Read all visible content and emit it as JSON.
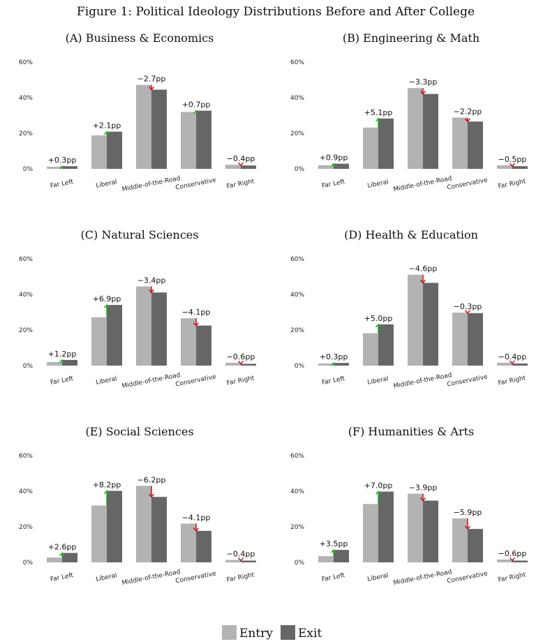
{
  "figure_title": "Figure 1: Political Ideology Distributions Before and After College",
  "legend": {
    "entry_label": "Entry",
    "exit_label": "Exit",
    "entry_color": "#b3b3b3",
    "exit_color": "#666666"
  },
  "colors": {
    "up_arrow": "#22aa22",
    "down_arrow": "#cc1111"
  },
  "chart_data": [
    {
      "type": "bar",
      "title": "(A) Business & Economics",
      "categories": [
        "Far Left",
        "Liberal",
        "Middle-of-the-Road",
        "Conservative",
        "Far Right"
      ],
      "series": [
        {
          "name": "Entry",
          "values": [
            1.2,
            18.8,
            47.2,
            32.0,
            2.3
          ]
        },
        {
          "name": "Exit",
          "values": [
            1.5,
            20.9,
            44.5,
            32.7,
            1.9
          ]
        }
      ],
      "annotations": [
        "+0.3pp",
        "+2.1pp",
        "−2.7pp",
        "+0.7pp",
        "−0.4pp"
      ],
      "yticks": [
        "0%",
        "20%",
        "40%",
        "60%"
      ],
      "ylim": [
        0,
        60
      ]
    },
    {
      "type": "bar",
      "title": "(B) Engineering & Math",
      "categories": [
        "Far Left",
        "Liberal",
        "Middle-of-the-Road",
        "Conservative",
        "Far Right"
      ],
      "series": [
        {
          "name": "Entry",
          "values": [
            2.0,
            23.2,
            45.4,
            28.8,
            2.0
          ]
        },
        {
          "name": "Exit",
          "values": [
            2.9,
            28.3,
            42.1,
            26.6,
            1.5
          ]
        }
      ],
      "annotations": [
        "+0.9pp",
        "+5.1pp",
        "−3.3pp",
        "−2.2pp",
        "−0.5pp"
      ],
      "yticks": [
        "0%",
        "20%",
        "40%",
        "60%"
      ],
      "ylim": [
        0,
        60
      ]
    },
    {
      "type": "bar",
      "title": "(C) Natural Sciences",
      "categories": [
        "Far Left",
        "Liberal",
        "Middle-of-the-Road",
        "Conservative",
        "Far Right"
      ],
      "series": [
        {
          "name": "Entry",
          "values": [
            2.0,
            27.2,
            44.5,
            26.6,
            1.6
          ]
        },
        {
          "name": "Exit",
          "values": [
            3.2,
            34.1,
            41.1,
            22.5,
            1.0
          ]
        }
      ],
      "annotations": [
        "+1.2pp",
        "+6.9pp",
        "−3.4pp",
        "−4.1pp",
        "−0.6pp"
      ],
      "yticks": [
        "0%",
        "20%",
        "40%",
        "60%"
      ],
      "ylim": [
        0,
        60
      ]
    },
    {
      "type": "bar",
      "title": "(D) Health & Education",
      "categories": [
        "Far Left",
        "Liberal",
        "Middle-of-the-Road",
        "Conservative",
        "Far Right"
      ],
      "series": [
        {
          "name": "Entry",
          "values": [
            1.2,
            18.2,
            51.1,
            29.8,
            1.6
          ]
        },
        {
          "name": "Exit",
          "values": [
            1.5,
            23.2,
            46.5,
            29.5,
            1.2
          ]
        }
      ],
      "annotations": [
        "+0.3pp",
        "+5.0pp",
        "−4.6pp",
        "−0.3pp",
        "−0.4pp"
      ],
      "yticks": [
        "0%",
        "20%",
        "40%",
        "60%"
      ],
      "ylim": [
        0,
        60
      ]
    },
    {
      "type": "bar",
      "title": "(E) Social Sciences",
      "categories": [
        "Far Left",
        "Liberal",
        "Middle-of-the-Road",
        "Conservative",
        "Far Right"
      ],
      "series": [
        {
          "name": "Entry",
          "values": [
            2.7,
            32.0,
            43.0,
            21.8,
            1.4
          ]
        },
        {
          "name": "Exit",
          "values": [
            5.3,
            40.2,
            36.8,
            17.7,
            1.0
          ]
        }
      ],
      "annotations": [
        "+2.6pp",
        "+8.2pp",
        "−6.2pp",
        "−4.1pp",
        "−0.4pp"
      ],
      "yticks": [
        "0%",
        "20%",
        "40%",
        "60%"
      ],
      "ylim": [
        0,
        60
      ]
    },
    {
      "type": "bar",
      "title": "(F) Humanities & Arts",
      "categories": [
        "Far Left",
        "Liberal",
        "Middle-of-the-Road",
        "Conservative",
        "Far Right"
      ],
      "series": [
        {
          "name": "Entry",
          "values": [
            3.5,
            32.8,
            38.6,
            24.7,
            1.6
          ]
        },
        {
          "name": "Exit",
          "values": [
            7.0,
            39.8,
            34.7,
            18.8,
            1.0
          ]
        }
      ],
      "annotations": [
        "+3.5pp",
        "+7.0pp",
        "−3.9pp",
        "−5.9pp",
        "−0.6pp"
      ],
      "yticks": [
        "0%",
        "20%",
        "40%",
        "60%"
      ],
      "ylim": [
        0,
        60
      ]
    }
  ]
}
